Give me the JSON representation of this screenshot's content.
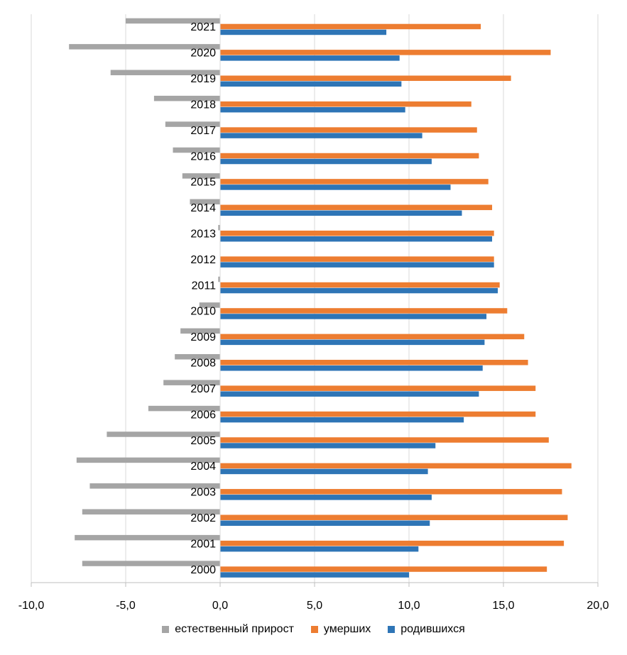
{
  "chart_data": {
    "type": "bar",
    "orientation": "horizontal",
    "categories": [
      "2000",
      "2001",
      "2002",
      "2003",
      "2004",
      "2005",
      "2006",
      "2007",
      "2008",
      "2009",
      "2010",
      "2011",
      "2012",
      "2013",
      "2014",
      "2015",
      "2016",
      "2017",
      "2018",
      "2019",
      "2020",
      "2021"
    ],
    "series": [
      {
        "name": "естественный прирост",
        "color": "#A5A5A5",
        "values": [
          -7.3,
          -7.7,
          -7.3,
          -6.9,
          -7.6,
          -6.0,
          -3.8,
          -3.0,
          -2.4,
          -2.1,
          -1.1,
          -0.1,
          0.0,
          -0.1,
          -1.6,
          -2.0,
          -2.5,
          -2.9,
          -3.5,
          -5.8,
          -8.0,
          -5.0
        ]
      },
      {
        "name": "умерших",
        "color": "#ED7D31",
        "values": [
          17.3,
          18.2,
          18.4,
          18.1,
          18.6,
          17.4,
          16.7,
          16.7,
          16.3,
          16.1,
          15.2,
          14.8,
          14.5,
          14.5,
          14.4,
          14.2,
          13.7,
          13.6,
          13.3,
          15.4,
          17.5,
          13.8
        ]
      },
      {
        "name": "родившихся",
        "color": "#2E75B6",
        "values": [
          10.0,
          10.5,
          11.1,
          11.2,
          11.0,
          11.4,
          12.9,
          13.7,
          13.9,
          14.0,
          14.1,
          14.7,
          14.5,
          14.4,
          12.8,
          12.2,
          11.2,
          10.7,
          9.8,
          9.6,
          9.5,
          8.8
        ]
      }
    ],
    "xlim": [
      -10,
      20
    ],
    "xticks": [
      -10,
      -5,
      0,
      5,
      10,
      15,
      20
    ],
    "xtick_labels": [
      "-10,0",
      "-5,0",
      "0,0",
      "5,0",
      "10,0",
      "15,0",
      "20,0"
    ],
    "title": "",
    "xlabel": "",
    "ylabel": "",
    "grid": true,
    "legend": "bottom"
  }
}
